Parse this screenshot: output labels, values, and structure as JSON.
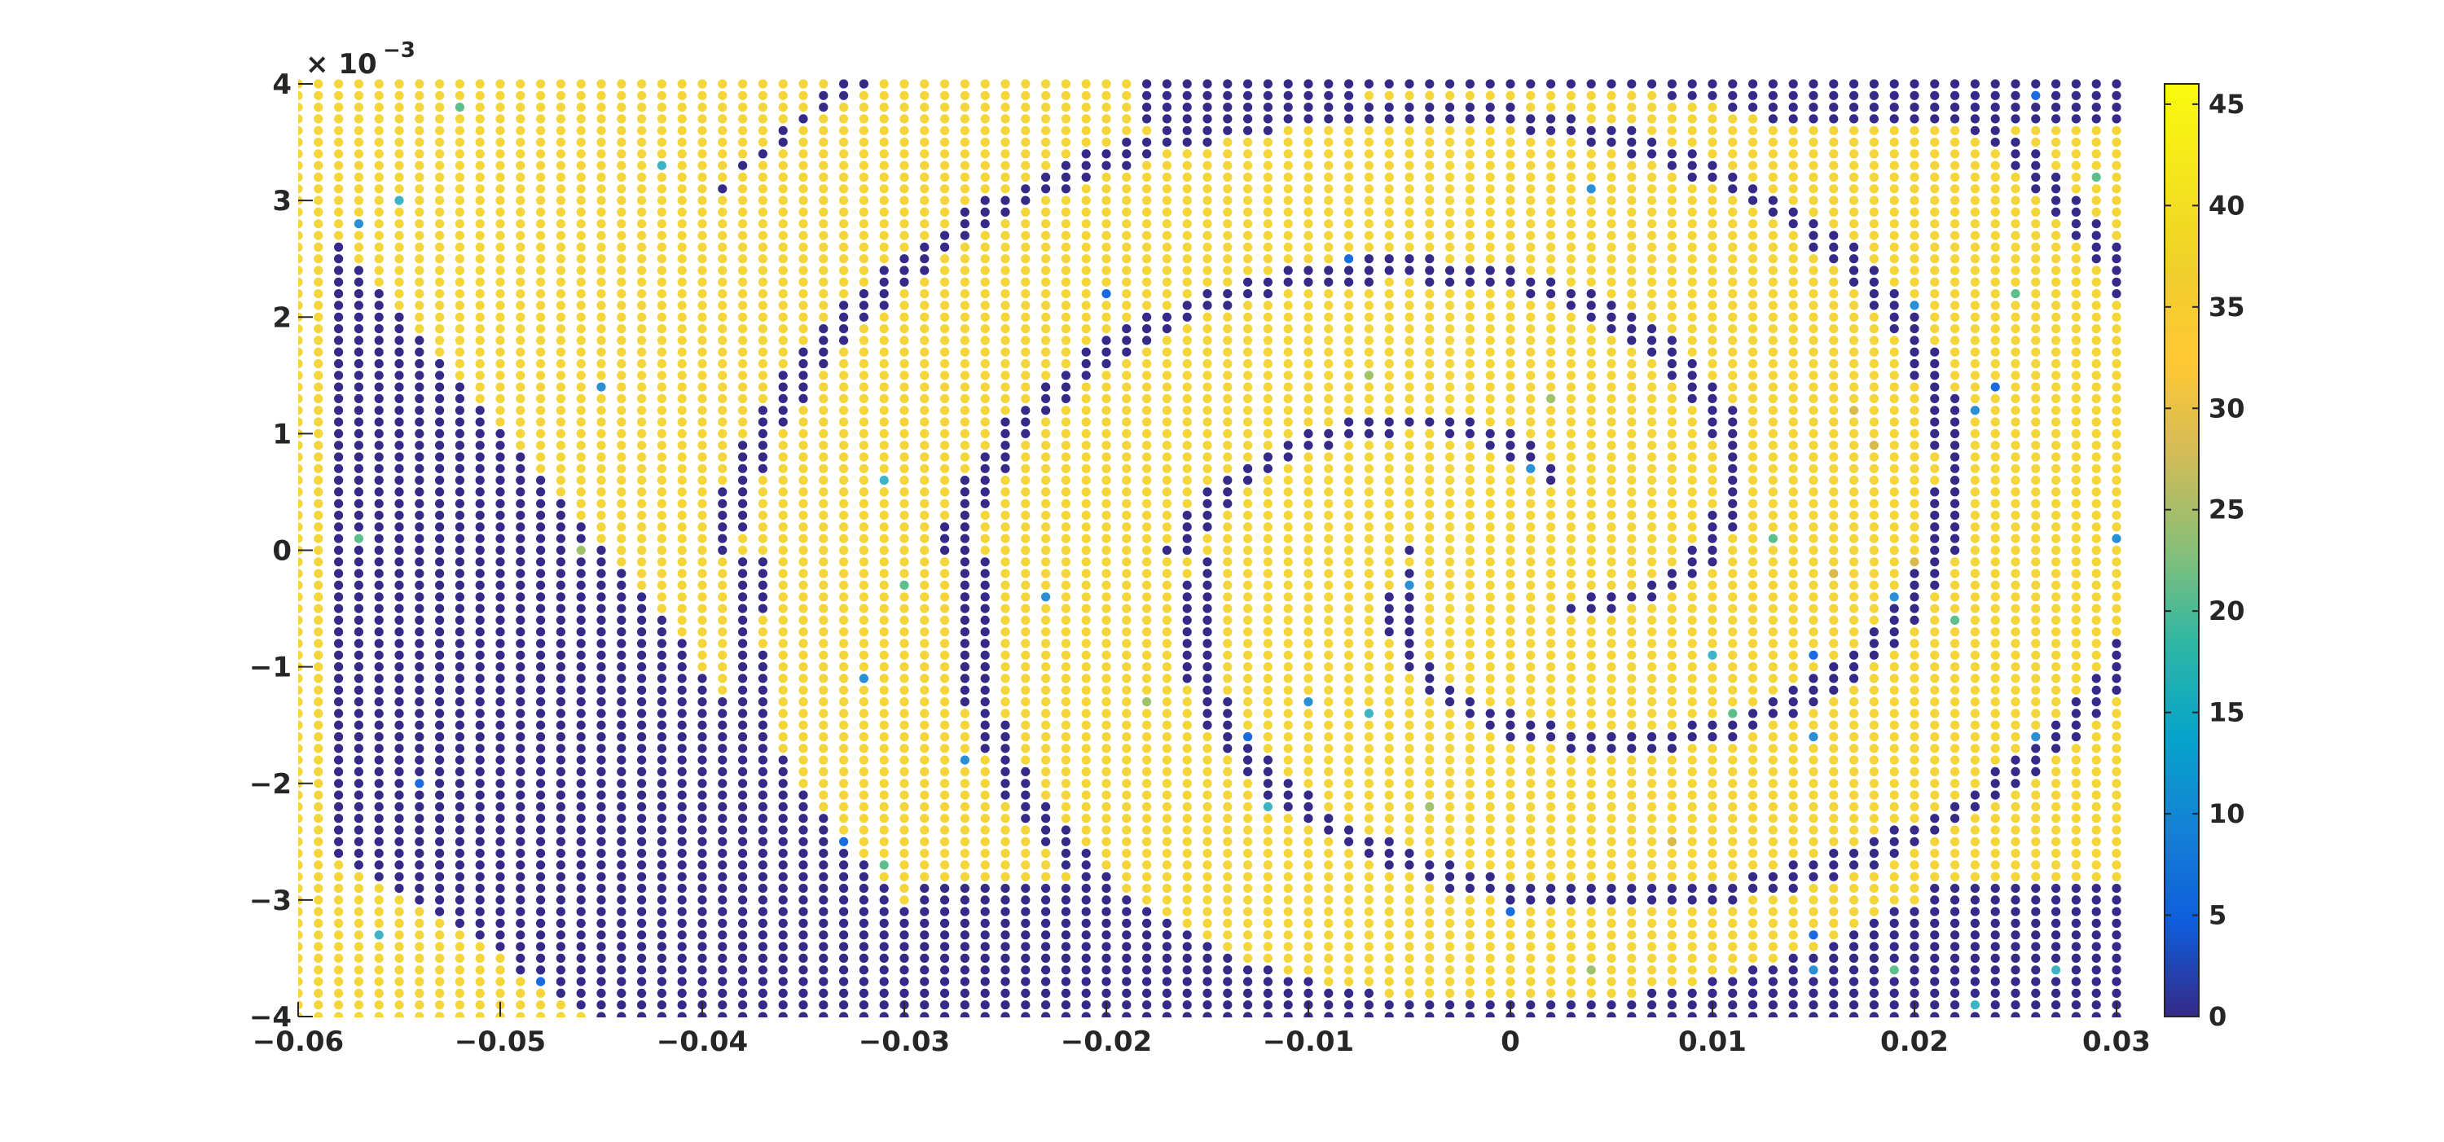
{
  "chart_data": {
    "type": "scatter",
    "title": "",
    "xlabel": "",
    "ylabel": "",
    "xlim": [
      -0.06,
      0.03
    ],
    "ylim": [
      -0.004,
      0.004
    ],
    "x_ticks": [
      -0.06,
      -0.05,
      -0.04,
      -0.03,
      -0.02,
      -0.01,
      0,
      0.01,
      0.02,
      0.03
    ],
    "x_tick_labels": [
      "−0.06",
      "−0.05",
      "−0.04",
      "−0.03",
      "−0.02",
      "−0.01",
      "0",
      "0.01",
      "0.02",
      "0.03"
    ],
    "y_ticks": [
      4,
      3,
      2,
      1,
      0,
      -1,
      -2,
      -3,
      -4
    ],
    "y_tick_labels": [
      "4",
      "3",
      "2",
      "1",
      "0",
      "−1",
      "−2",
      "−3",
      "−4"
    ],
    "y_exponent_label": "× 10",
    "y_exponent_power": "−3",
    "grid": false,
    "grid_description": {
      "x_spacing": 0.001,
      "y_spacing": 0.0001,
      "x_range": [
        -0.06,
        0.03
      ],
      "y_range": [
        -0.004,
        0.004
      ]
    },
    "value_pattern": "Gridded sample points colored by value (0 to about 46): bimodal — yellow (~42) or dark blue (~0) — forming a nested spiral/whorl centered near (0, 0) with a large dark blue band on the left, plus scattered intermediate-valued points.",
    "colorbar": {
      "colormap": "parula",
      "clim": [
        0,
        46
      ],
      "ticks": [
        45,
        40,
        35,
        30,
        25,
        20,
        15,
        10,
        5,
        0
      ],
      "tick_labels": [
        "45",
        "40",
        "35",
        "30",
        "25",
        "20",
        "15",
        "10",
        "5",
        "0"
      ]
    },
    "colors": {
      "high": "#f4d53a",
      "low": "#352a87",
      "axis": "#262626"
    }
  }
}
